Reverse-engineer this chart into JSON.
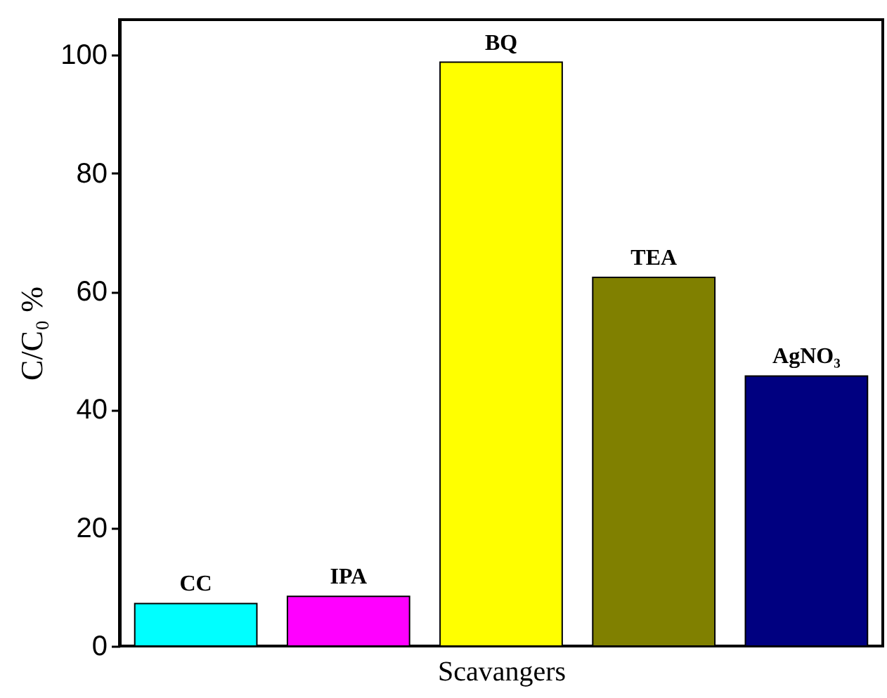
{
  "chart_data": {
    "type": "bar",
    "xlabel": "Scavangers",
    "ylabel": "C/C₀ %",
    "categories": [
      "CC",
      "IPA",
      "BQ",
      "TEA",
      "AgNO₃"
    ],
    "values": [
      7.2,
      8.4,
      98.8,
      62.4,
      45.7
    ],
    "colors": [
      "#00ffff",
      "#ff00ff",
      "#ffff00",
      "#808000",
      "#000080"
    ],
    "ylim": [
      0,
      106
    ],
    "yticks": [
      0,
      20,
      40,
      60,
      80,
      100
    ],
    "grid": false
  }
}
